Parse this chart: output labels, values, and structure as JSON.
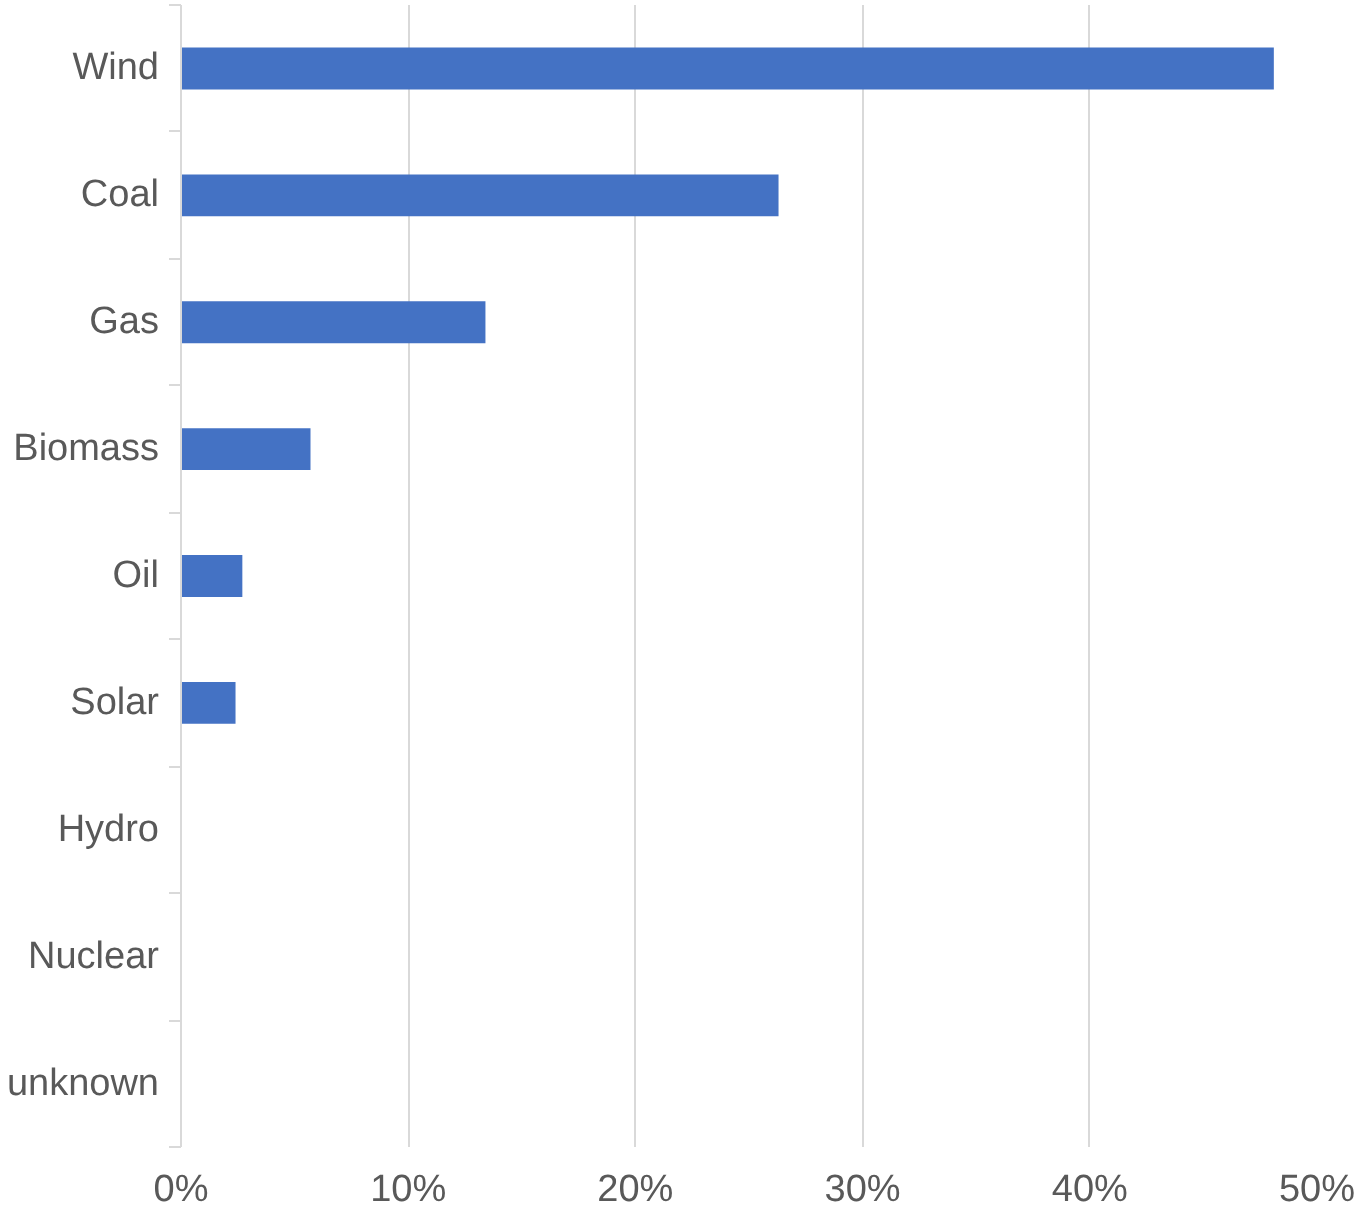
{
  "chart_data": {
    "type": "bar",
    "orientation": "horizontal",
    "categories": [
      "Wind",
      "Coal",
      "Gas",
      "Biomass",
      "Oil",
      "Solar",
      "Hydro",
      "Nuclear",
      "unknown"
    ],
    "values": [
      48.1,
      26.3,
      13.4,
      5.7,
      2.7,
      2.4,
      0,
      0,
      0
    ],
    "color": "#4472c4",
    "xlim": [
      0,
      50
    ],
    "xticks": [
      {
        "value": 0,
        "label": "0%"
      },
      {
        "value": 10,
        "label": "10%"
      },
      {
        "value": 20,
        "label": "20%"
      },
      {
        "value": 30,
        "label": "30%"
      },
      {
        "value": 40,
        "label": "40%"
      },
      {
        "value": 50,
        "label": "50%"
      }
    ],
    "grid": "x"
  }
}
